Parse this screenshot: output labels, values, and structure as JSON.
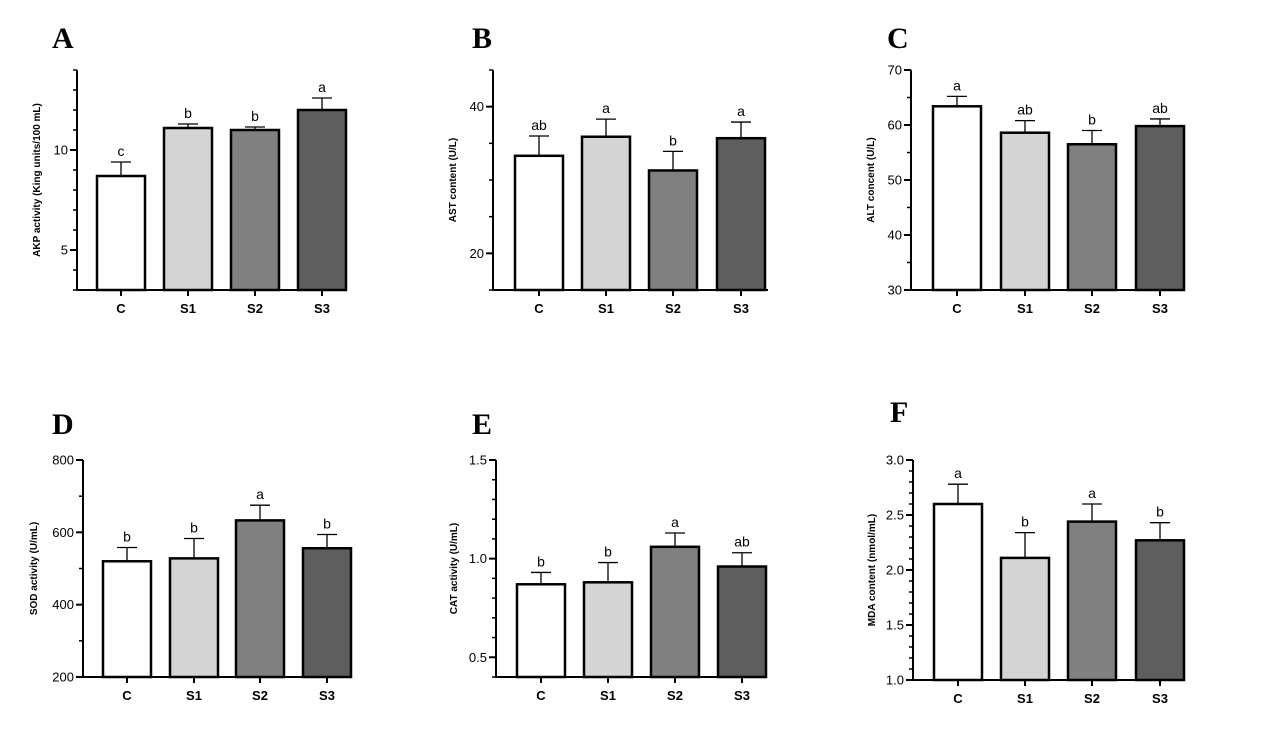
{
  "chart_data": [
    {
      "panel": "A",
      "type": "bar",
      "categories": [
        "C",
        "S1",
        "S2",
        "S3"
      ],
      "values": [
        8.7,
        11.1,
        11.0,
        12.0
      ],
      "errors": [
        0.7,
        0.2,
        0.15,
        0.6
      ],
      "significance": [
        "c",
        "b",
        "b",
        "a"
      ],
      "ylabel": "AKP activity (King units/100 mL)",
      "ylim": [
        3,
        14
      ],
      "yticks": [
        5,
        10
      ],
      "minor_step": 1,
      "colors": [
        "#ffffff",
        "#d4d4d4",
        "#808080",
        "#5e5e5e"
      ]
    },
    {
      "panel": "B",
      "type": "bar",
      "categories": [
        "C",
        "S1",
        "S2",
        "S3"
      ],
      "values": [
        33.3,
        35.9,
        31.3,
        35.7
      ],
      "errors": [
        2.7,
        2.4,
        2.6,
        2.2
      ],
      "significance": [
        "ab",
        "a",
        "b",
        "a"
      ],
      "ylabel": "AST content (U/L)",
      "ylim": [
        15,
        45
      ],
      "yticks": [
        20,
        40
      ],
      "minor_step": 5,
      "colors": [
        "#ffffff",
        "#d4d4d4",
        "#808080",
        "#5e5e5e"
      ]
    },
    {
      "panel": "C",
      "type": "bar",
      "categories": [
        "C",
        "S1",
        "S2",
        "S3"
      ],
      "values": [
        63.4,
        58.6,
        56.5,
        59.8
      ],
      "errors": [
        1.8,
        2.2,
        2.5,
        1.3
      ],
      "significance": [
        "a",
        "ab",
        "b",
        "ab"
      ],
      "ylabel": "ALT concent (U/L)",
      "ylim": [
        30,
        70
      ],
      "yticks": [
        30,
        40,
        50,
        60,
        70
      ],
      "minor_step": 5,
      "colors": [
        "#ffffff",
        "#d4d4d4",
        "#808080",
        "#5e5e5e"
      ]
    },
    {
      "panel": "D",
      "type": "bar",
      "categories": [
        "C",
        "S1",
        "S2",
        "S3"
      ],
      "values": [
        520,
        528,
        633,
        556
      ],
      "errors": [
        38,
        55,
        42,
        38
      ],
      "significance": [
        "b",
        "b",
        "a",
        "b"
      ],
      "ylabel": "SOD activity  (U/mL)",
      "ylim": [
        200,
        800
      ],
      "yticks": [
        200,
        400,
        600,
        800
      ],
      "minor_step": 100,
      "colors": [
        "#ffffff",
        "#d4d4d4",
        "#808080",
        "#5e5e5e"
      ]
    },
    {
      "panel": "E",
      "type": "bar",
      "categories": [
        "C",
        "S1",
        "S2",
        "S3"
      ],
      "values": [
        0.87,
        0.88,
        1.06,
        0.96
      ],
      "errors": [
        0.06,
        0.1,
        0.07,
        0.07
      ],
      "significance": [
        "b",
        "b",
        "a",
        "ab"
      ],
      "ylabel": "CAT activity (U/mL)",
      "ylim": [
        0.4,
        1.5
      ],
      "yticks": [
        0.5,
        1.0,
        1.5
      ],
      "ytick_labels": [
        "0.5",
        "1.0",
        "1.5"
      ],
      "minor_step": 0.1,
      "colors": [
        "#ffffff",
        "#d4d4d4",
        "#808080",
        "#5e5e5e"
      ]
    },
    {
      "panel": "F",
      "type": "bar",
      "categories": [
        "C",
        "S1",
        "S2",
        "S3"
      ],
      "values": [
        2.6,
        2.11,
        2.44,
        2.27
      ],
      "errors": [
        0.18,
        0.23,
        0.16,
        0.16
      ],
      "significance": [
        "a",
        "b",
        "a",
        "b"
      ],
      "ylabel": "MDA content (nmol/mL)",
      "ylim": [
        1.0,
        3.0
      ],
      "yticks": [
        1.0,
        1.5,
        2.0,
        2.5,
        3.0
      ],
      "ytick_labels": [
        "1.0",
        "1.5",
        "2.0",
        "2.5",
        "3.0"
      ],
      "minor_step": 0.1,
      "colors": [
        "#ffffff",
        "#d4d4d4",
        "#808080",
        "#5e5e5e"
      ]
    }
  ]
}
